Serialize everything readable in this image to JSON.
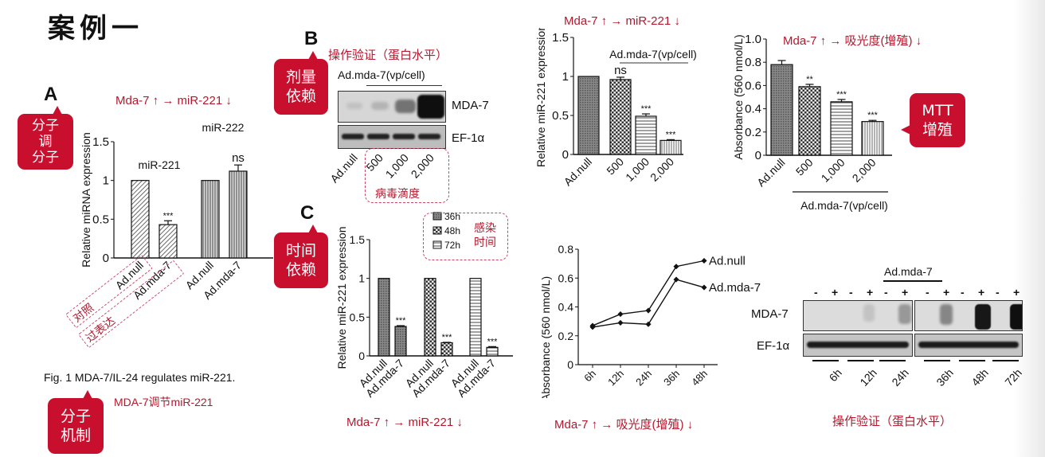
{
  "title": "案例一",
  "colors": {
    "accent": "#c8102e",
    "annotation": "#b5182d"
  },
  "panels": {
    "a": "A",
    "b": "B",
    "c": "C"
  },
  "callouts": {
    "a": "分子\n调\n分子",
    "b": "剂量\n依赖",
    "c": "时间\n依赖",
    "mtt": "MTT\n增殖",
    "mechanism": "分子\n机制"
  },
  "annotations": {
    "a_top": "Mda-7 ↑  → miR-221 ↓",
    "b_top": "操作验证（蛋白水平）",
    "b_virus": "病毒滴度",
    "c_bottom": "Mda-7 ↑  → miR-221 ↓",
    "c_legend": "感染\n时间",
    "dose_top": "Mda-7 ↑  → miR-221 ↓",
    "mtt_top": "Mda-7 ↑  →  吸光度(增殖) ↓",
    "line_bottom": "Mda-7 ↑  →  吸光度(增殖) ↓",
    "wb2_bottom": "操作验证（蛋白水平）",
    "a_control": "对照",
    "a_overexpr": "过表达",
    "caption_cn": "MDA-7调节miR-221"
  },
  "caption": "Fig. 1 MDA-7/IL-24 regulates miR-221.",
  "western_b": {
    "header": "Ad.mda-7(vp/cell)",
    "rows": [
      "MDA-7",
      "EF-1α"
    ],
    "lanes": [
      "Ad.null",
      "500",
      "1,000",
      "2,000"
    ],
    "band_intensity": [
      0.02,
      0.1,
      0.45,
      1.0
    ]
  },
  "western_time": {
    "header": "Ad.mda-7",
    "rows": [
      "MDA-7",
      "EF-1α"
    ],
    "signs": [
      "-",
      "+",
      "-",
      "+",
      "-",
      "+",
      "-",
      "+",
      "-",
      "+",
      "-",
      "+"
    ],
    "times": [
      "6h",
      "12h",
      "24h",
      "36h",
      "48h",
      "72h"
    ],
    "band_intensity": [
      0,
      0,
      0,
      0.02,
      0,
      0.25,
      0,
      0.35,
      0,
      0.95,
      0,
      1.0
    ]
  },
  "chart_data": [
    {
      "id": "panelA",
      "type": "bar",
      "ylabel": "Relative miRNA expression",
      "ylim": [
        0,
        1.5
      ],
      "yticks": [
        "0",
        "0.5",
        "1",
        "1.5"
      ],
      "groups": [
        "miR-221",
        "miR-222"
      ],
      "categories": [
        "Ad.null",
        "Ad.mda-7",
        "Ad.null",
        "Ad.mda-7"
      ],
      "values": [
        1.0,
        0.43,
        1.0,
        1.12
      ],
      "errors": [
        0,
        0.05,
        0,
        0.08
      ],
      "significance": [
        "",
        "***",
        "",
        "ns"
      ]
    },
    {
      "id": "panelC",
      "type": "bar",
      "ylabel": "Relative miR-221 expression",
      "ylim": [
        0,
        1.5
      ],
      "yticks": [
        "0",
        "0.5",
        "1",
        "1.5"
      ],
      "legend": [
        "36h",
        "48h",
        "72h"
      ],
      "categories": [
        "Ad.null",
        "Ad.mda-7",
        "Ad.null",
        "Ad.mda-7",
        "Ad.null",
        "Ad.mda-7"
      ],
      "values": [
        1.0,
        0.38,
        1.0,
        0.17,
        1.0,
        0.11
      ],
      "errors": [
        0,
        0.01,
        0,
        0.005,
        0,
        0.01
      ],
      "significance": [
        "",
        "***",
        "",
        "***",
        "",
        "***"
      ]
    },
    {
      "id": "dose",
      "type": "bar",
      "ylabel": "Relative miR-221 expression",
      "ylim": [
        0,
        1.5
      ],
      "yticks": [
        "0",
        "0.5",
        "1",
        "1.5"
      ],
      "group_label": "Ad.mda-7(vp/cell)",
      "categories": [
        "Ad.null",
        "500",
        "1,000",
        "2,000"
      ],
      "values": [
        1.0,
        0.96,
        0.49,
        0.18
      ],
      "errors": [
        0,
        0.03,
        0.03,
        0.01
      ],
      "significance": [
        "",
        "ns",
        "***",
        "***"
      ]
    },
    {
      "id": "mtt",
      "type": "bar",
      "ylabel": "Absorbance (560 nmol/L)",
      "ylim": [
        0,
        1.0
      ],
      "yticks": [
        "0",
        "0.2",
        "0.4",
        "0.6",
        "0.8",
        "1.0"
      ],
      "group_label": "Ad.mda-7(vp/cell)",
      "categories": [
        "Ad.null",
        "500",
        "1,000",
        "2,000"
      ],
      "values": [
        0.78,
        0.59,
        0.46,
        0.29
      ],
      "errors": [
        0.035,
        0.02,
        0.02,
        0.01
      ],
      "significance": [
        "",
        "**",
        "***",
        "***"
      ]
    },
    {
      "id": "growth",
      "type": "line",
      "ylabel": "Absorbance (560 nmol/L)",
      "ylim": [
        0,
        0.8
      ],
      "yticks": [
        "0",
        "0.2",
        "0.4",
        "0.6",
        "0.8"
      ],
      "x": [
        "6h",
        "12h",
        "24h",
        "36h",
        "48h"
      ],
      "series": [
        {
          "name": "Ad.null",
          "values": [
            0.27,
            0.35,
            0.375,
            0.68,
            0.72
          ]
        },
        {
          "name": "Ad.mda-7",
          "values": [
            0.26,
            0.29,
            0.28,
            0.59,
            0.535
          ]
        }
      ]
    }
  ]
}
